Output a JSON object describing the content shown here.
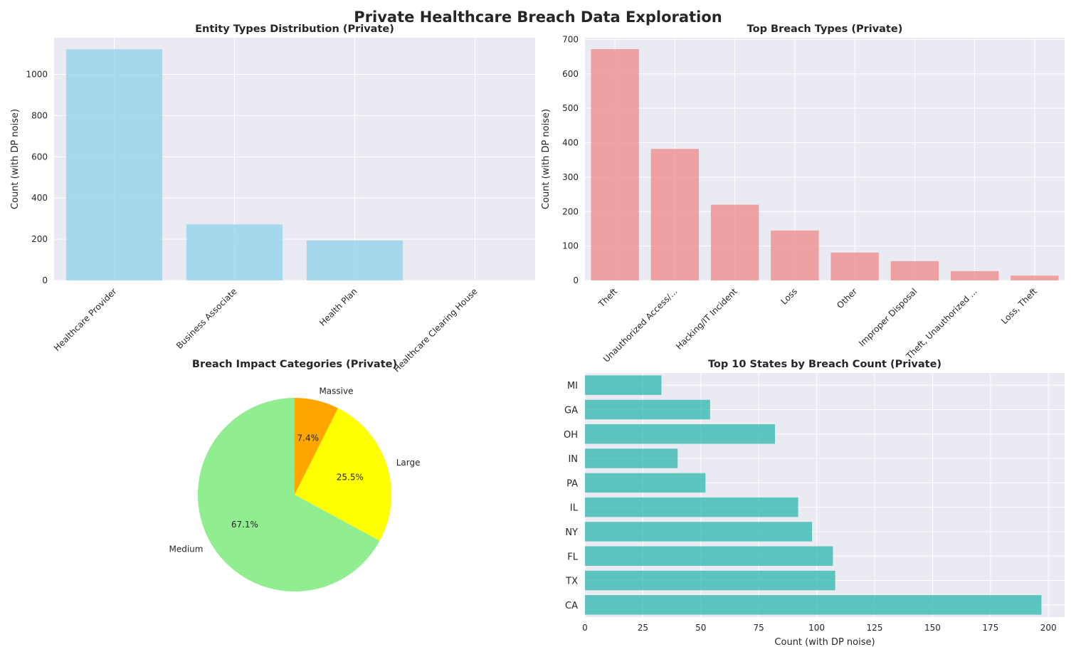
{
  "figure": {
    "suptitle": "Private Healthcare Breach Data Exploration",
    "colors": {
      "axes_bg": "#EAEAF2",
      "grid": "#FFFFFF",
      "text": "#262626",
      "entity_bar": "#87CEEB",
      "breach_bar": "#F08080",
      "state_bar": "#20B2AA",
      "pie_massive": "#FFA500",
      "pie_large": "#FFFF00",
      "pie_medium": "#90EE90"
    }
  },
  "chart_data": [
    {
      "type": "bar",
      "title": "Entity Types Distribution (Private)",
      "xlabel": "",
      "ylabel": "Count (with DP noise)",
      "categories": [
        "Healthcare Provider",
        "Business Associate",
        "Health Plan",
        "Healthcare Clearing House"
      ],
      "values": [
        1122,
        272,
        194,
        0
      ],
      "ylim": [
        0,
        1178
      ],
      "yticks": [
        0,
        200,
        400,
        600,
        800,
        1000
      ],
      "grid": true
    },
    {
      "type": "bar",
      "title": "Top Breach Types (Private)",
      "xlabel": "",
      "ylabel": "Count (with DP noise)",
      "categories": [
        "Theft",
        "Unauthorized Access/...",
        "Hacking/IT Incident",
        "Loss",
        "Other",
        "Improper Disposal",
        "Theft, Unauthorized ...",
        "Loss, Theft"
      ],
      "values": [
        672,
        382,
        220,
        145,
        81,
        56,
        27,
        14
      ],
      "ylim": [
        0,
        705
      ],
      "yticks": [
        0,
        100,
        200,
        300,
        400,
        500,
        600,
        700
      ],
      "grid": true
    },
    {
      "type": "pie",
      "title": "Breach Impact Categories (Private)",
      "labels": [
        "Massive",
        "Large",
        "Medium"
      ],
      "values": [
        7.4,
        25.5,
        67.1
      ],
      "pct_labels": [
        "7.4%",
        "25.5%",
        "67.1%"
      ],
      "startangle": 90,
      "direction": "clockwise"
    },
    {
      "type": "bar",
      "orientation": "horizontal",
      "title": "Top 10 States by Breach Count (Private)",
      "xlabel": "Count (with DP noise)",
      "ylabel": "",
      "categories": [
        "CA",
        "TX",
        "FL",
        "NY",
        "IL",
        "PA",
        "IN",
        "OH",
        "GA",
        "MI"
      ],
      "values": [
        197,
        108,
        107,
        98,
        92,
        52,
        40,
        82,
        54,
        33
      ],
      "xlim": [
        0,
        207
      ],
      "xticks": [
        0,
        25,
        50,
        75,
        100,
        125,
        150,
        175,
        200
      ],
      "grid": true
    }
  ]
}
